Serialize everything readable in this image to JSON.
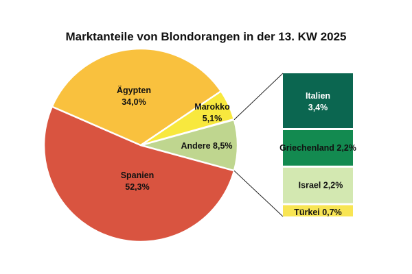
{
  "chart_data": {
    "type": "pie",
    "title": "Marktanteile von Blondorangen in der 13. KW 2025",
    "slices": [
      {
        "label": "Andere",
        "value_text": "8,5%",
        "value": 8.5,
        "color": "#bfd68f"
      },
      {
        "label": "Spanien",
        "value_text": "52,3%",
        "value": 52.3,
        "color": "#d95440"
      },
      {
        "label": "Ägypten",
        "value_text": "34,0%",
        "value": 34.0,
        "color": "#f9c13e"
      },
      {
        "label": "Marokko",
        "value_text": "5,1%",
        "value": 5.1,
        "color": "#f8e83e"
      }
    ],
    "breakdown_of": "Andere",
    "breakdown": [
      {
        "label": "Italien",
        "value_text": "3,4%",
        "value": 3.4,
        "color": "#0b6650",
        "text_color": "#ffffff"
      },
      {
        "label": "Griechenland",
        "value_text": "2,2%",
        "value": 2.2,
        "color": "#138a50",
        "text_color": "#111111"
      },
      {
        "label": "Israel",
        "value_text": "2,2%",
        "value": 2.2,
        "color": "#d3e8b1",
        "text_color": "#111111"
      },
      {
        "label": "Türkei",
        "value_text": "0,7%",
        "value": 0.7,
        "color": "#f8e554",
        "text_color": "#111111"
      }
    ]
  }
}
